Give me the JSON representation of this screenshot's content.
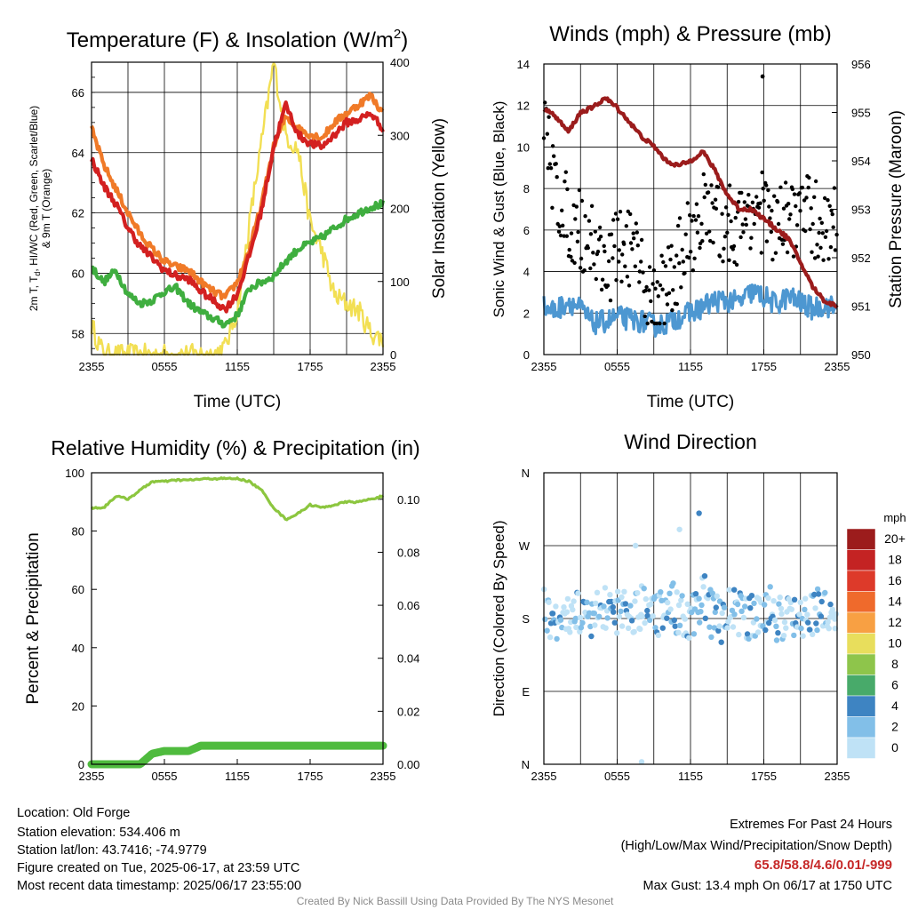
{
  "chart_data": [
    {
      "type": "line",
      "title": "Temperature (F) & Insolation (W/m",
      "title_sup": "2",
      "title_close": ")",
      "xlabel": "Time (UTC)",
      "ylabel_lines": [
        "2m T, T",
        "d",
        ", HI/WC (Red, Green, Scarlet/Blue)",
        "& 9m T (Orange)"
      ],
      "y2label": "Solar Insolation (Yellow)",
      "x_ticks": [
        "2355",
        "0555",
        "1155",
        "1755",
        "2355"
      ],
      "ylim": [
        57.3,
        67.0
      ],
      "y_ticks": [
        58,
        60,
        62,
        64,
        66
      ],
      "y2lim": [
        0,
        400
      ],
      "y2_ticks": [
        0,
        100,
        200,
        300,
        400
      ],
      "grid": true,
      "x_hours": [
        0,
        1,
        2,
        3,
        4,
        5,
        6,
        7,
        8,
        9,
        10,
        11,
        12,
        13,
        14,
        15,
        16,
        17,
        18,
        19,
        20,
        21,
        22,
        23,
        24
      ],
      "series": [
        {
          "name": "2m T",
          "color": "#d32020",
          "axis": "left",
          "values": [
            63.8,
            62.9,
            62.3,
            61.5,
            60.9,
            60.5,
            60.1,
            59.9,
            59.8,
            59.4,
            59.1,
            58.8,
            59.3,
            60.6,
            62.1,
            64.2,
            65.6,
            64.6,
            64.3,
            64.2,
            64.6,
            65.0,
            65.1,
            65.3,
            64.8
          ]
        },
        {
          "name": "9m T",
          "color": "#f07a28",
          "axis": "left",
          "values": [
            64.8,
            63.6,
            62.8,
            62.0,
            61.3,
            60.8,
            60.4,
            60.2,
            60.1,
            59.7,
            59.4,
            59.2,
            59.7,
            60.8,
            62.3,
            64.2,
            65.2,
            64.8,
            64.6,
            64.5,
            65.0,
            65.3,
            65.6,
            65.9,
            65.3
          ]
        },
        {
          "name": "Td",
          "color": "#3fae3f",
          "axis": "left",
          "values": [
            60.2,
            59.7,
            60.1,
            59.3,
            59.0,
            59.1,
            59.4,
            59.5,
            59.0,
            58.7,
            58.5,
            58.3,
            58.6,
            59.5,
            59.7,
            59.9,
            60.4,
            60.8,
            61.0,
            61.2,
            61.5,
            61.8,
            62.0,
            62.2,
            62.3
          ]
        },
        {
          "name": "Solar Insolation",
          "color": "#f2df53",
          "axis": "right",
          "values": [
            40,
            0,
            0,
            0,
            0,
            0,
            0,
            0,
            0,
            0,
            0,
            10,
            60,
            180,
            290,
            400,
            300,
            280,
            180,
            140,
            80,
            70,
            60,
            30,
            20
          ]
        }
      ]
    },
    {
      "type": "scatter",
      "title": "Winds (mph) & Pressure (mb)",
      "xlabel": "Time (UTC)",
      "ylabel": "Sonic Wind & Gust (Blue, Black)",
      "y2label": "Station Pressure (Maroon)",
      "x_ticks": [
        "2355",
        "0555",
        "1155",
        "1755",
        "2355"
      ],
      "ylim": [
        0,
        14
      ],
      "y_ticks": [
        0,
        2,
        4,
        6,
        8,
        10,
        12,
        14
      ],
      "y2lim": [
        950,
        956
      ],
      "y2_ticks": [
        950,
        951,
        952,
        953,
        954,
        955,
        956
      ],
      "grid": true,
      "x_hours": [
        0,
        1,
        2,
        3,
        4,
        5,
        6,
        7,
        8,
        9,
        10,
        11,
        12,
        13,
        14,
        15,
        16,
        17,
        18,
        19,
        20,
        21,
        22,
        23,
        24
      ],
      "series": [
        {
          "name": "Sonic Wind",
          "color": "#4d97d1",
          "axis": "left",
          "values": [
            2.3,
            2.1,
            2.6,
            2.2,
            1.5,
            1.6,
            1.8,
            1.7,
            1.6,
            1.4,
            1.5,
            1.8,
            2.0,
            2.3,
            2.6,
            2.6,
            2.5,
            3.0,
            2.8,
            2.4,
            2.8,
            2.5,
            2.2,
            2.4,
            2.2
          ]
        },
        {
          "name": "Gust",
          "color": "#000000",
          "axis": "left",
          "values": [
            10.8,
            8.0,
            6.5,
            6.0,
            5.5,
            4.2,
            5.0,
            5.2,
            3.6,
            2.6,
            3.2,
            4.5,
            5.8,
            7.0,
            6.2,
            6.5,
            6.0,
            7.2,
            6.8,
            6.0,
            6.5,
            7.0,
            6.5,
            6.2,
            6.5
          ],
          "max_gust": {
            "x_hour": 17.9,
            "y": 13.4
          }
        },
        {
          "name": "Station Pressure",
          "color": "#9b1c1c",
          "axis": "right",
          "values": [
            955.1,
            954.9,
            954.6,
            955.0,
            955.1,
            955.3,
            955.1,
            954.8,
            954.5,
            954.3,
            954.0,
            953.9,
            954.0,
            954.2,
            953.8,
            953.3,
            953.0,
            953.0,
            952.8,
            952.6,
            952.4,
            951.9,
            951.4,
            951.1,
            951.0
          ]
        }
      ]
    },
    {
      "type": "line",
      "title": "Relative Humidity (%) & Precipitation (in)",
      "ylabel": "Percent & Precipitation",
      "x_ticks": [
        "2355",
        "0555",
        "1155",
        "1755",
        "2355"
      ],
      "ylim": [
        0,
        100
      ],
      "y_ticks": [
        0,
        20,
        40,
        60,
        80,
        100
      ],
      "y2lim": [
        0,
        0.11
      ],
      "y2_ticks": [
        "0.00",
        "0.02",
        "0.04",
        "0.06",
        "0.08",
        "0.10"
      ],
      "grid": true,
      "x_hours": [
        0,
        1,
        2,
        3,
        4,
        5,
        6,
        7,
        8,
        9,
        10,
        11,
        12,
        13,
        14,
        15,
        16,
        17,
        18,
        19,
        20,
        21,
        22,
        23,
        24
      ],
      "series": [
        {
          "name": "Relative Humidity",
          "color": "#8cc63f",
          "axis": "left",
          "values": [
            88,
            88,
            92,
            91,
            94,
            97,
            97,
            97.5,
            97.5,
            97.8,
            98,
            98,
            98,
            97,
            94,
            88,
            84,
            86,
            89,
            88,
            89,
            90,
            90,
            91,
            92
          ]
        },
        {
          "name": "Precipitation",
          "color": "#4fbb3e",
          "axis": "right",
          "values": [
            0,
            0,
            0,
            0,
            0,
            0.004,
            0.005,
            0.005,
            0.005,
            0.007,
            0.007,
            0.007,
            0.007,
            0.007,
            0.007,
            0.007,
            0.007,
            0.007,
            0.007,
            0.007,
            0.007,
            0.007,
            0.007,
            0.007,
            0.007
          ]
        }
      ]
    },
    {
      "type": "scatter",
      "title": "Wind Direction",
      "ylabel": "Direction (Colored By Speed)",
      "x_ticks": [
        "2355",
        "0555",
        "1155",
        "1755",
        "2355"
      ],
      "y_ticks": [
        "N",
        "E",
        "S",
        "W",
        "N"
      ],
      "ylim_deg": [
        0,
        360
      ],
      "grid": true,
      "series": [
        {
          "name": "Wind Direction",
          "color": "#7fb8e3",
          "x_hours": [
            0.2,
            1.1,
            1.9,
            2.7,
            3.3,
            4.0,
            4.6,
            5.3,
            6.0,
            6.5,
            7.1,
            7.7,
            8.2,
            8.9,
            9.5,
            10.2,
            10.8,
            11.4,
            12.0,
            12.7,
            13.3,
            13.8,
            14.5,
            15.2,
            16.0,
            16.6,
            17.3,
            18.0,
            18.7,
            19.4,
            20.0,
            20.7,
            21.4,
            22.1,
            22.8,
            23.6
          ],
          "deg": [
            200,
            185,
            175,
            190,
            205,
            170,
            195,
            215,
            180,
            225,
            160,
            200,
            240,
            175,
            210,
            255,
            190,
            175,
            200,
            280,
            185,
            165,
            195,
            205,
            180,
            175,
            195,
            210,
            170,
            185,
            200,
            175,
            190,
            205,
            180,
            195
          ]
        }
      ],
      "colorbar": {
        "unit": "mph",
        "labels": [
          "20+",
          "18",
          "16",
          "14",
          "12",
          "10",
          "8",
          "6",
          "4",
          "2",
          "0"
        ],
        "colors": [
          "#9c1c1c",
          "#c42323",
          "#dd3a2a",
          "#ef6a2c",
          "#f8a043",
          "#e8de5c",
          "#8ec54b",
          "#48aa6a",
          "#3e84c2",
          "#82bfe8",
          "#bfe2f6"
        ]
      }
    }
  ],
  "info": {
    "location": "Location: Old Forge",
    "elevation": "Station elevation: 534.406 m",
    "latlon": "Station lat/lon: 43.7416; -74.9779",
    "created": "Figure created on Tue, 2025-06-17, at 23:59 UTC",
    "recent": "Most recent data timestamp: 2025/06/17 23:55:00"
  },
  "extremes": {
    "title": "Extremes For Past 24 Hours",
    "subtitle": "(High/Low/Max Wind/Precipitation/Snow Depth)",
    "values": "65.8/58.8/4.6/0.01/-999",
    "max_gust": "Max Gust: 13.4 mph On 06/17 at 1750 UTC"
  },
  "credit": "Created By Nick Bassill Using Data Provided By The NYS Mesonet"
}
